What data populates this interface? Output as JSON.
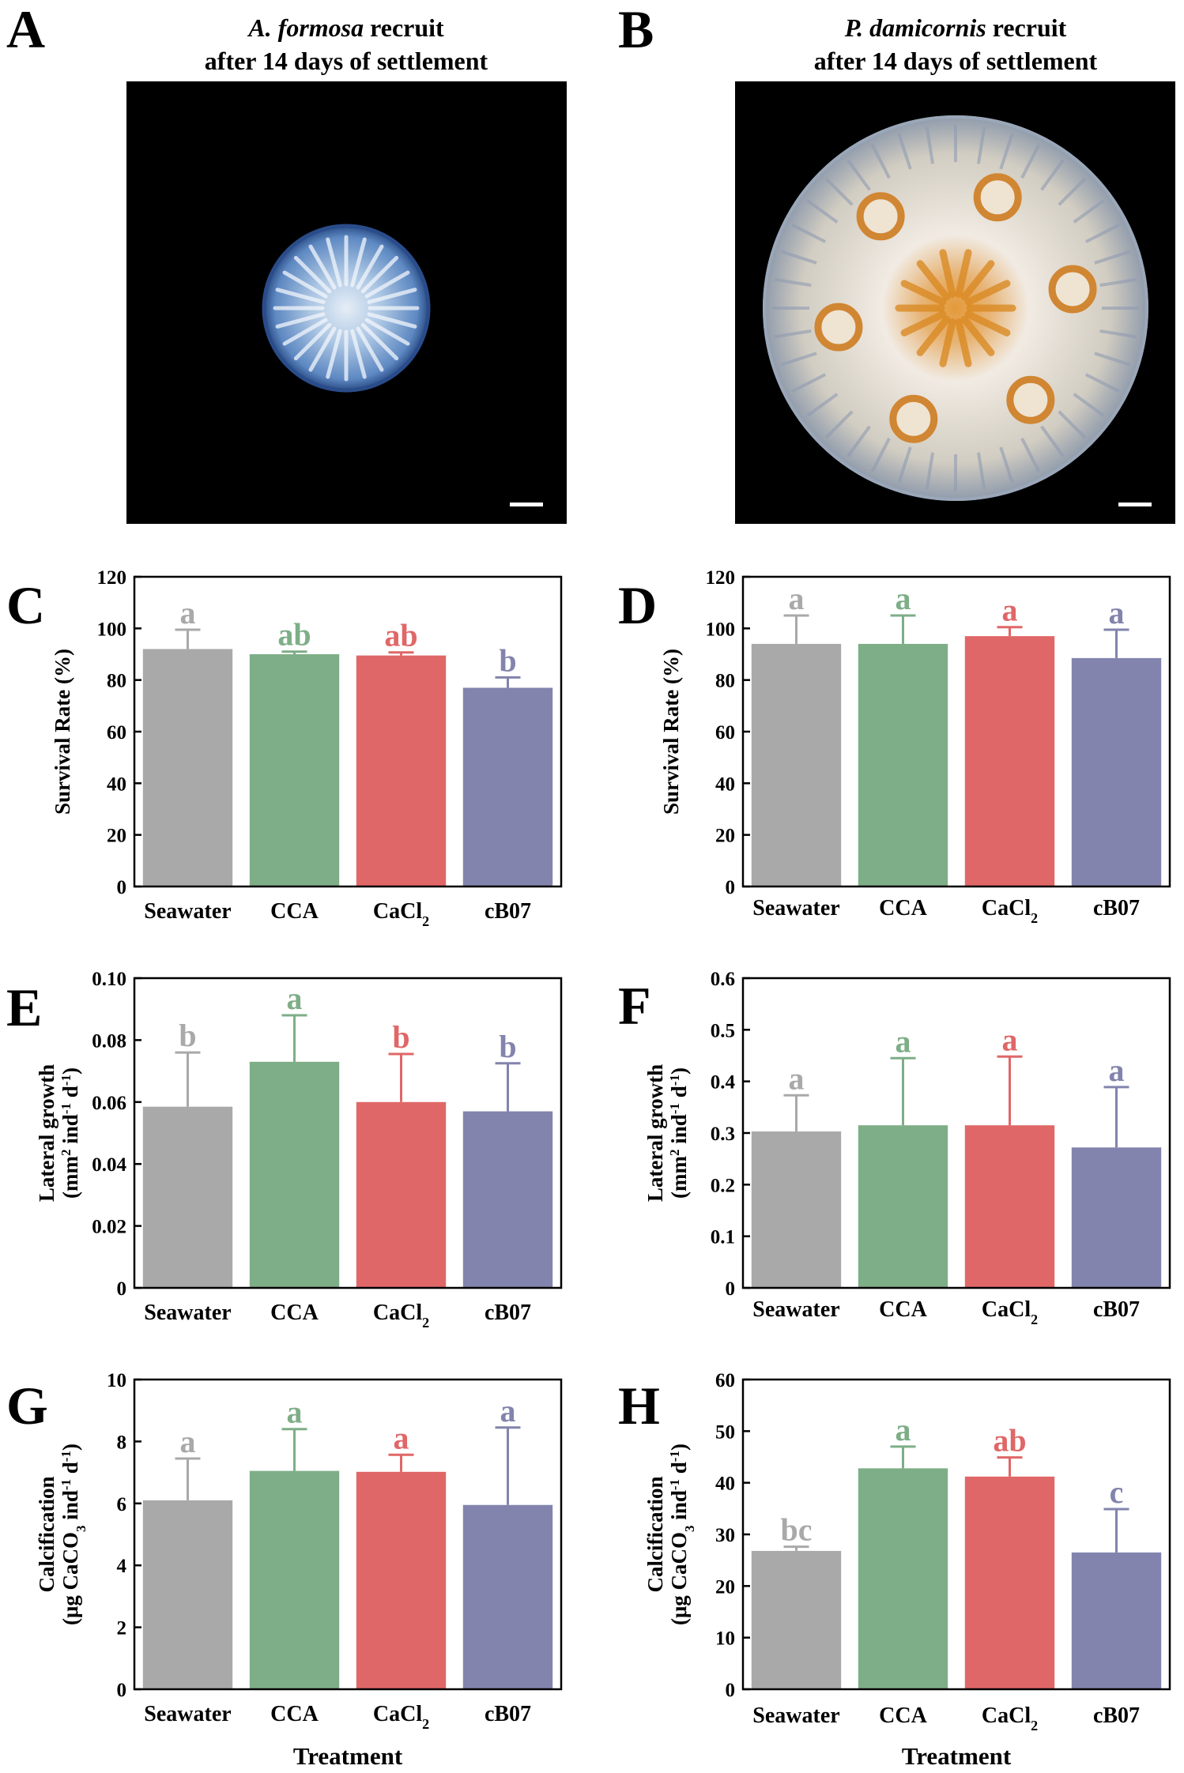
{
  "photos": [
    {
      "letter": "A",
      "title_species": "A. formosa",
      "title_rest": " recruit",
      "title_line2": "after 14 days of settlement",
      "colors": {
        "rim": "#2a4c8a",
        "body": "#7aa7d6",
        "center": "#dbe8f5"
      }
    },
    {
      "letter": "B",
      "title_species": "P. damicornis",
      "title_rest": " recruit",
      "title_line2": "after 14 days of settlement",
      "colors": {
        "rim": "#9aa7b8",
        "body": "#d9d3c6",
        "center": "#d58a2a"
      }
    }
  ],
  "x_axis_label": "Treatment",
  "colors": {
    "Seawater": "#a9a9a9",
    "CCA": "#7eae87",
    "CaCl2": "#e06767",
    "cB07": "#8284ad"
  },
  "chart_data": [
    {
      "letter": "C",
      "type": "bar",
      "categories": [
        "Seawater",
        "CCA",
        "CaCl2",
        "cB07"
      ],
      "ylabel": "Survival Rate (%)",
      "ylabel2": "",
      "ylim": [
        0,
        120
      ],
      "yticks": [
        "0",
        "20",
        "40",
        "60",
        "80",
        "100",
        "120"
      ],
      "values": [
        92,
        90,
        89.5,
        77
      ],
      "errors": [
        7.5,
        1,
        1.2,
        4
      ],
      "letters": [
        "a",
        "ab",
        "ab",
        "b"
      ]
    },
    {
      "letter": "D",
      "type": "bar",
      "categories": [
        "Seawater",
        "CCA",
        "CaCl2",
        "cB07"
      ],
      "ylabel": "Survival Rate (%)",
      "ylabel2": "",
      "ylim": [
        0,
        120
      ],
      "yticks": [
        "0",
        "20",
        "40",
        "60",
        "80",
        "100",
        "120"
      ],
      "values": [
        94,
        94,
        97,
        88.5
      ],
      "errors": [
        11,
        11,
        3.5,
        11
      ],
      "letters": [
        "a",
        "a",
        "a",
        "a"
      ]
    },
    {
      "letter": "E",
      "type": "bar",
      "categories": [
        "Seawater",
        "CCA",
        "CaCl2",
        "cB07"
      ],
      "ylabel": "Lateral growth",
      "ylabel2": "(mm2 ind-1 d-1)",
      "ylim": [
        0,
        0.1
      ],
      "yticks": [
        "0",
        "0.02",
        "0.04",
        "0.06",
        "0.08",
        "0.10"
      ],
      "values": [
        0.0585,
        0.073,
        0.06,
        0.057
      ],
      "errors": [
        0.0175,
        0.015,
        0.0155,
        0.0155
      ],
      "letters": [
        "b",
        "a",
        "b",
        "b"
      ]
    },
    {
      "letter": "F",
      "type": "bar",
      "categories": [
        "Seawater",
        "CCA",
        "CaCl2",
        "cB07"
      ],
      "ylabel": "Lateral growth",
      "ylabel2": "(mm2 ind-1 d-1)",
      "ylim": [
        0,
        0.6
      ],
      "yticks": [
        "0",
        "0.1",
        "0.2",
        "0.3",
        "0.4",
        "0.5",
        "0.6"
      ],
      "values": [
        0.303,
        0.315,
        0.315,
        0.272
      ],
      "errors": [
        0.07,
        0.13,
        0.133,
        0.117
      ],
      "letters": [
        "a",
        "a",
        "a",
        "a"
      ]
    },
    {
      "letter": "G",
      "type": "bar",
      "categories": [
        "Seawater",
        "CCA",
        "CaCl2",
        "cB07"
      ],
      "ylabel": "Calcification",
      "ylabel2": "(μg CaCO3 ind-1 d-1)",
      "ylim": [
        0,
        10
      ],
      "yticks": [
        "0",
        "2",
        "4",
        "6",
        "8",
        "10"
      ],
      "values": [
        6.1,
        7.05,
        7.02,
        5.95
      ],
      "errors": [
        1.35,
        1.35,
        0.55,
        2.5
      ],
      "letters": [
        "a",
        "a",
        "a",
        "a"
      ]
    },
    {
      "letter": "H",
      "type": "bar",
      "categories": [
        "Seawater",
        "CCA",
        "CaCl2",
        "cB07"
      ],
      "ylabel": "Calcification",
      "ylabel2": "(μg CaCO3 ind-1 d-1)",
      "ylim": [
        0,
        60
      ],
      "yticks": [
        "0",
        "10",
        "20",
        "30",
        "40",
        "50",
        "60"
      ],
      "values": [
        26.8,
        42.8,
        41.2,
        26.5
      ],
      "errors": [
        0.8,
        4.2,
        3.7,
        8.4
      ],
      "letters": [
        "bc",
        "a",
        "ab",
        "c"
      ]
    }
  ]
}
